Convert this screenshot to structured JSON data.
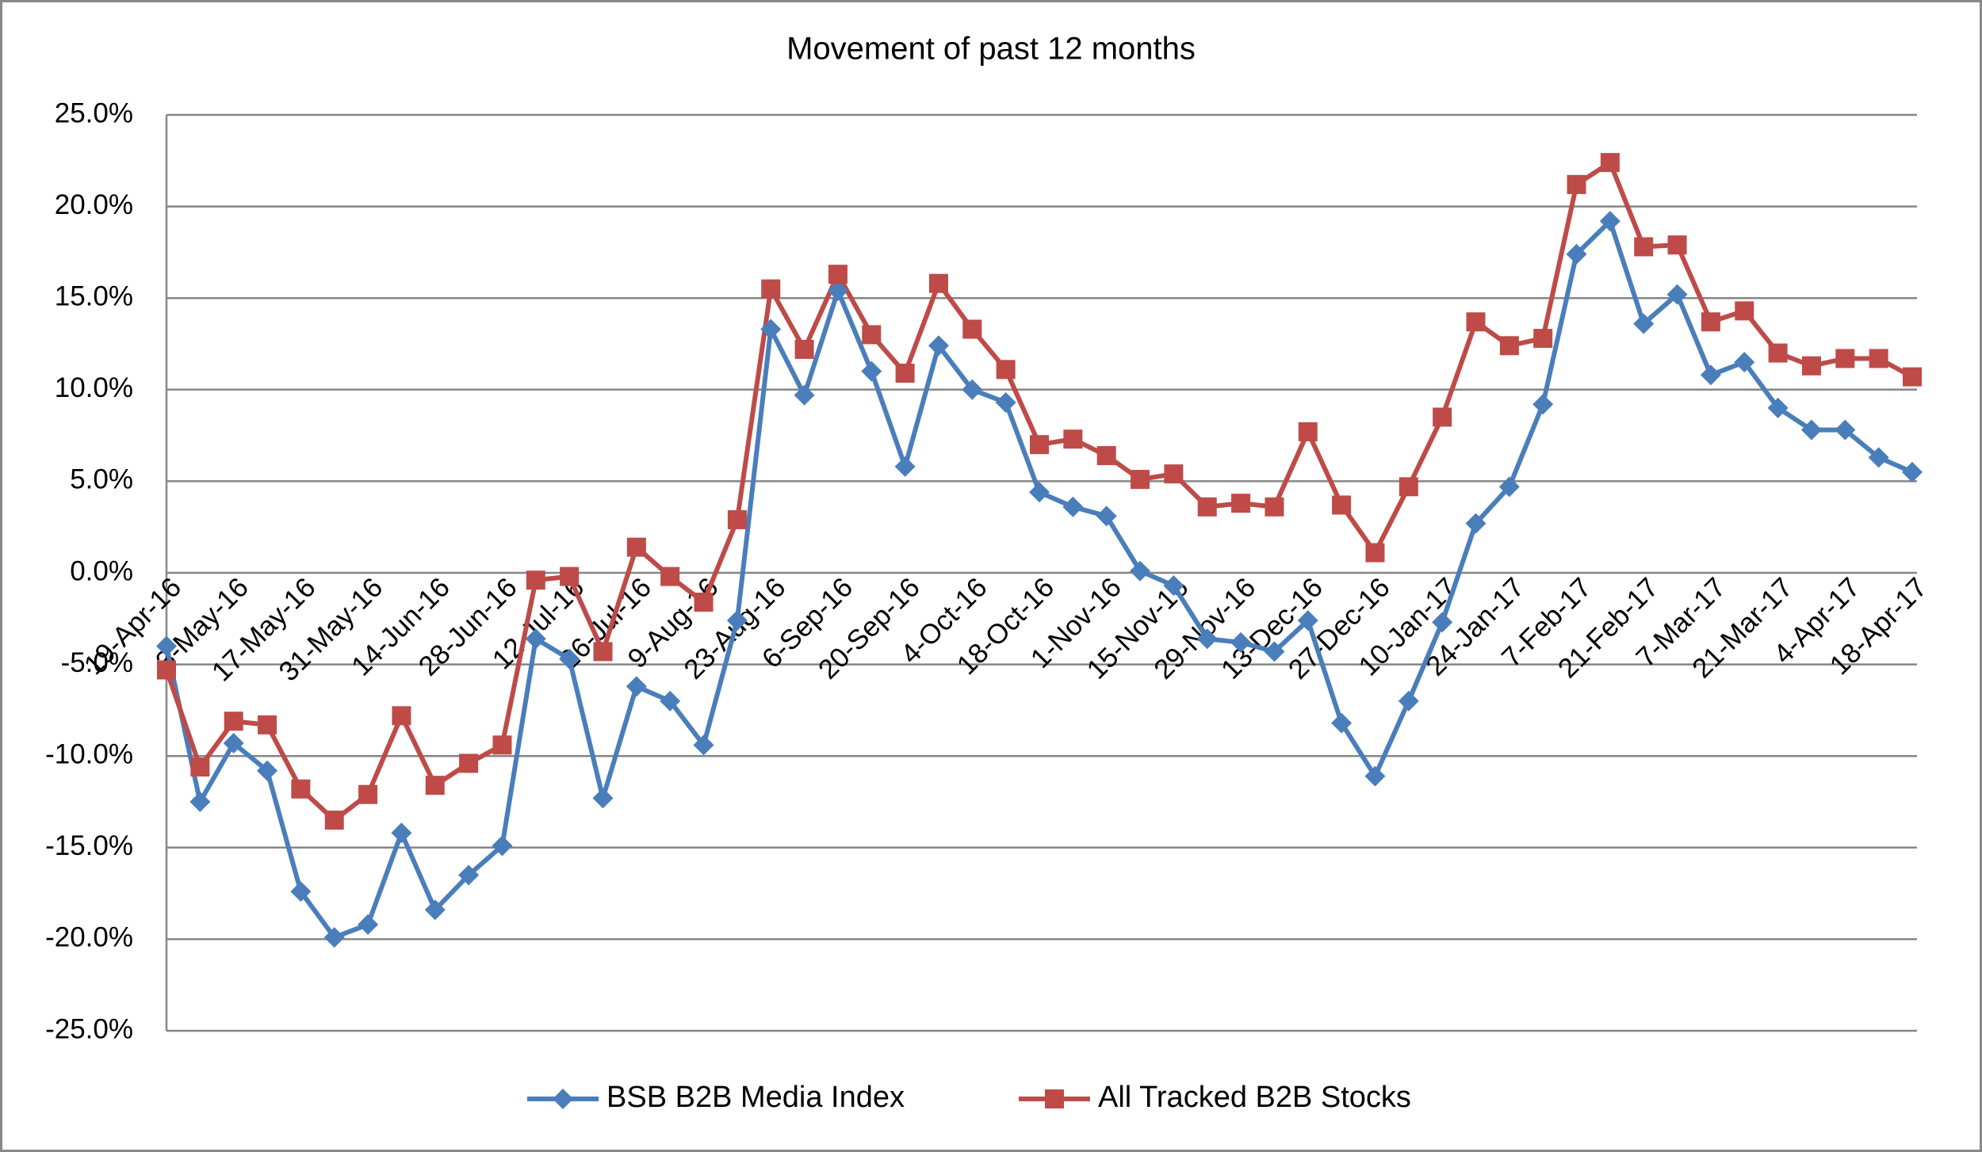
{
  "chart_data": {
    "type": "line",
    "title": "Movement of past 12 months",
    "categories": [
      "19-Apr-16",
      null,
      "3-May-16",
      null,
      "17-May-16",
      null,
      "31-May-16",
      null,
      "14-Jun-16",
      null,
      "28-Jun-16",
      null,
      "12-Jul-16",
      null,
      "26-Jul-16",
      null,
      "9-Aug-16",
      null,
      "23-Aug-16",
      null,
      "6-Sep-16",
      null,
      "20-Sep-16",
      null,
      "4-Oct-16",
      null,
      "18-Oct-16",
      null,
      "1-Nov-16",
      null,
      "15-Nov-16",
      null,
      "29-Nov-16",
      null,
      "13-Dec-16",
      null,
      "27-Dec-16",
      null,
      "10-Jan-17",
      null,
      "24-Jan-17",
      null,
      "7-Feb-17",
      null,
      "21-Feb-17",
      null,
      "7-Mar-17",
      null,
      "21-Mar-17",
      null,
      "4-Apr-17",
      null,
      "18-Apr-17"
    ],
    "series": [
      {
        "name": "BSB B2B Media Index",
        "color": "#4a7ebb",
        "marker": "diamond",
        "values": [
          -4.0,
          -12.5,
          -9.3,
          -10.8,
          -17.4,
          -19.9,
          -19.2,
          -14.2,
          -18.4,
          -16.5,
          -14.9,
          -3.6,
          -4.7,
          -12.3,
          -6.2,
          -7.0,
          -9.4,
          -2.6,
          13.3,
          9.7,
          15.4,
          11.0,
          5.8,
          12.4,
          10.0,
          9.3,
          4.4,
          3.6,
          3.1,
          0.1,
          -0.7,
          -3.6,
          -3.8,
          -4.3,
          -2.6,
          -8.2,
          -11.1,
          -7.0,
          -2.7,
          2.7,
          4.7,
          9.2,
          17.4,
          19.2,
          13.6,
          15.2,
          10.8,
          11.5,
          9.0,
          7.8,
          7.8,
          6.3,
          5.5
        ]
      },
      {
        "name": "All Tracked B2B Stocks",
        "color": "#be4b48",
        "marker": "square",
        "values": [
          -5.3,
          -10.6,
          -8.1,
          -8.3,
          -11.8,
          -13.5,
          -12.1,
          -7.8,
          -11.6,
          -10.4,
          -9.4,
          -0.4,
          -0.2,
          -4.3,
          1.4,
          -0.2,
          -1.6,
          2.9,
          15.5,
          12.2,
          16.3,
          13.0,
          10.9,
          15.8,
          13.3,
          11.1,
          7.0,
          7.3,
          6.4,
          5.1,
          5.4,
          3.6,
          3.8,
          3.6,
          7.7,
          3.7,
          1.1,
          4.7,
          8.5,
          13.7,
          12.4,
          12.8,
          21.2,
          22.4,
          17.8,
          17.9,
          13.7,
          14.3,
          12.0,
          11.3,
          11.7,
          11.7,
          10.7
        ]
      }
    ],
    "ylim": [
      -25,
      25
    ],
    "yticks": [
      {
        "value": -25,
        "label": "-25.0%"
      },
      {
        "value": -20,
        "label": "-20.0%"
      },
      {
        "value": -15,
        "label": "-15.0%"
      },
      {
        "value": -10,
        "label": "-10.0%"
      },
      {
        "value": -5,
        "label": "-5.0%"
      },
      {
        "value": 0,
        "label": "0.0%"
      },
      {
        "value": 5,
        "label": "5.0%"
      },
      {
        "value": 10,
        "label": "10.0%"
      },
      {
        "value": 15,
        "label": "15.0%"
      },
      {
        "value": 20,
        "label": "20.0%"
      },
      {
        "value": 25,
        "label": "25.0%"
      }
    ],
    "grid": true,
    "legend": "bottom"
  }
}
